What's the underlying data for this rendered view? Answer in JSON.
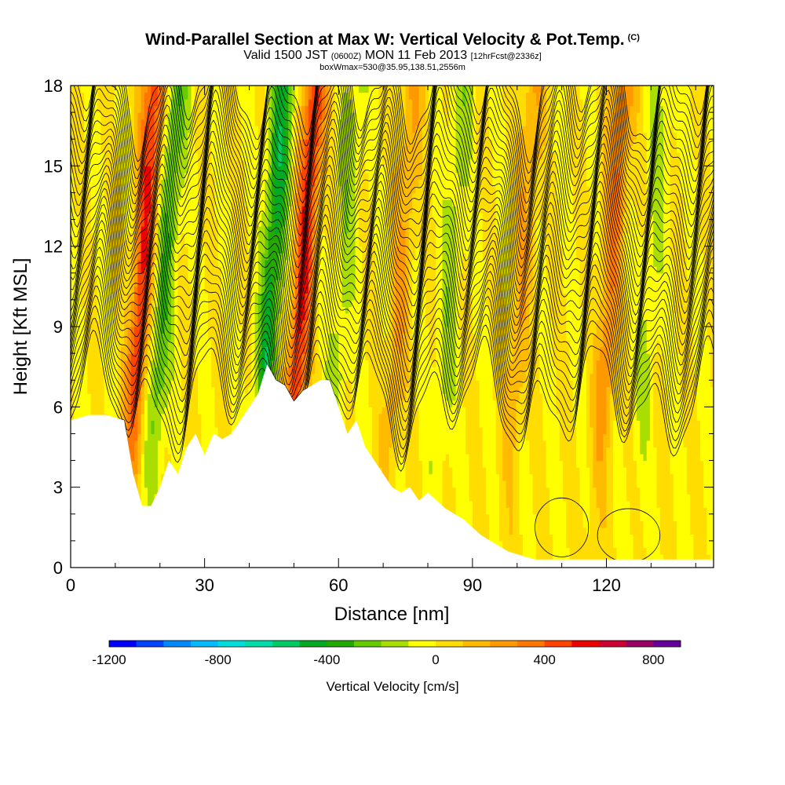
{
  "header": {
    "title": "Wind-Parallel Section at Max W: Vertical Velocity & Pot.Temp.",
    "copyright": "(C)",
    "valid_prefix": "Valid 1500 JST",
    "valid_utc": "(0600Z)",
    "valid_date": "MON 11 Feb 2013",
    "forecast": "[12hrFcst@2336z]",
    "box_info": "boxWmax=530@35.95,138.51,2556m"
  },
  "colors": {
    "contour": "#000000",
    "background": "#ffffff"
  },
  "chart_data": {
    "type": "heatmap",
    "title": "Wind-Parallel Section at Max W: Vertical Velocity & Pot.Temp.",
    "xlabel": "Distance [nm]",
    "ylabel": "Height [Kft MSL]",
    "xlim": [
      0,
      144
    ],
    "ylim": [
      0,
      18
    ],
    "x_ticks": [
      0,
      30,
      60,
      90,
      120
    ],
    "y_ticks": [
      0,
      3,
      6,
      9,
      12,
      15,
      18
    ],
    "colorbar": {
      "title": "Vertical Velocity [cm/s]",
      "range": [
        -1200,
        900
      ],
      "step": 100,
      "tick_values": [
        -1200,
        -800,
        -400,
        0,
        400,
        800
      ],
      "tick_labels": [
        "-1200",
        "-800",
        "-400",
        "0",
        "400",
        "800"
      ],
      "colors": [
        "#0000ff",
        "#0044ff",
        "#0088ff",
        "#00bbff",
        "#00dddd",
        "#00ddaa",
        "#00cc66",
        "#00aa22",
        "#22aa00",
        "#66cc00",
        "#aadd00",
        "#ffff00",
        "#ffdd00",
        "#ffbb00",
        "#ff9900",
        "#ff7700",
        "#ff4400",
        "#ee0000",
        "#cc0033",
        "#990066",
        "#660099"
      ]
    },
    "terrain_kft": {
      "x": [
        0,
        4,
        8,
        12,
        14,
        16,
        18,
        20,
        22,
        24,
        26,
        28,
        30,
        32,
        34,
        36,
        38,
        40,
        42,
        44,
        46,
        48,
        50,
        52,
        54,
        56,
        58,
        60,
        62,
        64,
        66,
        68,
        70,
        72,
        74,
        76,
        78,
        80,
        82,
        84,
        86,
        88,
        90,
        92,
        94,
        96,
        98,
        100,
        102,
        104,
        106,
        110,
        120,
        130,
        144
      ],
      "y": [
        5.5,
        5.7,
        5.7,
        5.5,
        3.5,
        2.3,
        2.3,
        3.0,
        4.0,
        3.5,
        4.5,
        5.0,
        4.2,
        5.0,
        4.8,
        5.0,
        5.5,
        6.0,
        6.5,
        7.6,
        7.0,
        6.8,
        6.2,
        6.6,
        6.8,
        7.0,
        7.0,
        6.0,
        5.0,
        5.5,
        4.5,
        4.0,
        3.5,
        3.0,
        2.8,
        3.0,
        2.5,
        2.8,
        2.5,
        2.2,
        2.0,
        1.8,
        1.5,
        1.2,
        1.0,
        0.8,
        0.6,
        0.5,
        0.4,
        0.3,
        0.3,
        0.3,
        0.3,
        0.3,
        0.3
      ]
    },
    "vertical_velocity_features": [
      {
        "x": 15,
        "peak_cm_s": 500,
        "kind": "updraft"
      },
      {
        "x": 20,
        "peak_cm_s": -300,
        "kind": "downdraft"
      },
      {
        "x": 44,
        "peak_cm_s": -450,
        "kind": "downdraft"
      },
      {
        "x": 51,
        "peak_cm_s": 530,
        "kind": "updraft"
      },
      {
        "x": 60,
        "peak_cm_s": -150,
        "kind": "downdraft"
      },
      {
        "x": 73,
        "peak_cm_s": 200,
        "kind": "updraft"
      },
      {
        "x": 84,
        "peak_cm_s": -150,
        "kind": "downdraft"
      },
      {
        "x": 100,
        "peak_cm_s": 200,
        "kind": "updraft"
      },
      {
        "x": 120,
        "peak_cm_s": 300,
        "kind": "updraft"
      },
      {
        "x": 129,
        "peak_cm_s": -120,
        "kind": "downdraft"
      }
    ],
    "theta_contours": {
      "count": 34,
      "lowest_kft": 6.2,
      "spacing_kft": 0.36
    }
  }
}
